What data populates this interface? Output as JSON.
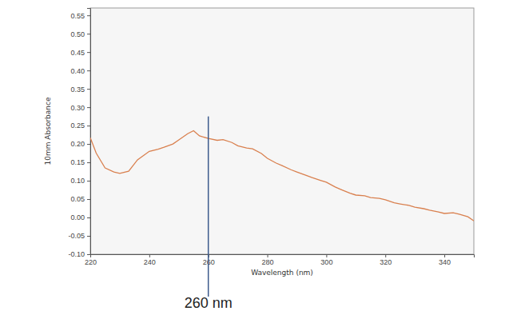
{
  "chart_data": {
    "type": "line",
    "x_label": "Wavelength (nm)",
    "y_label": "10mm Absorbance",
    "xlim": [
      220,
      350
    ],
    "xticks": [
      220,
      240,
      260,
      280,
      300,
      320,
      340
    ],
    "ylim": [
      -0.1,
      0.57
    ],
    "yticks": [
      {
        "value": -0.1,
        "label": "-0.10"
      },
      {
        "value": -0.05,
        "label": "-0.05"
      },
      {
        "value": 0,
        "label": "0.00"
      },
      {
        "value": 0.05,
        "label": "0.05"
      },
      {
        "value": 0.1,
        "label": "0.10"
      },
      {
        "value": 0.15,
        "label": "0.15"
      },
      {
        "value": 0.2,
        "label": "0.20"
      },
      {
        "value": 0.25,
        "label": "0.25"
      },
      {
        "value": 0.3,
        "label": "0.30"
      },
      {
        "value": 0.35,
        "label": "0.35"
      },
      {
        "value": 0.4,
        "label": "0.40"
      },
      {
        "value": 0.45,
        "label": "0.45"
      },
      {
        "value": 0.5,
        "label": "0.50"
      },
      {
        "value": 0.55,
        "label": "0.55"
      }
    ],
    "grid": false,
    "x": [
      220,
      222,
      225,
      228,
      230,
      233,
      236,
      240,
      243,
      245,
      248,
      250,
      253,
      255,
      257,
      260,
      263,
      265,
      268,
      270,
      273,
      275,
      278,
      280,
      283,
      285,
      288,
      290,
      293,
      295,
      298,
      300,
      303,
      305,
      308,
      310,
      313,
      315,
      318,
      320,
      323,
      325,
      328,
      330,
      333,
      335,
      338,
      340,
      343,
      345,
      348,
      350
    ],
    "series": [
      {
        "color": "#d9804f",
        "values": [
          0.217,
          0.175,
          0.135,
          0.124,
          0.12,
          0.126,
          0.157,
          0.18,
          0.186,
          0.191,
          0.2,
          0.211,
          0.228,
          0.236,
          0.222,
          0.215,
          0.21,
          0.212,
          0.204,
          0.195,
          0.189,
          0.187,
          0.174,
          0.161,
          0.148,
          0.141,
          0.13,
          0.124,
          0.115,
          0.109,
          0.101,
          0.096,
          0.083,
          0.076,
          0.066,
          0.061,
          0.059,
          0.054,
          0.052,
          0.048,
          0.04,
          0.037,
          0.033,
          0.028,
          0.024,
          0.02,
          0.015,
          0.011,
          0.013,
          0.009,
          0.002,
          -0.009
        ]
      }
    ],
    "annotation": {
      "x": 260,
      "y": 0.275,
      "label": "260 nm",
      "color": "#3c5a8c"
    }
  }
}
